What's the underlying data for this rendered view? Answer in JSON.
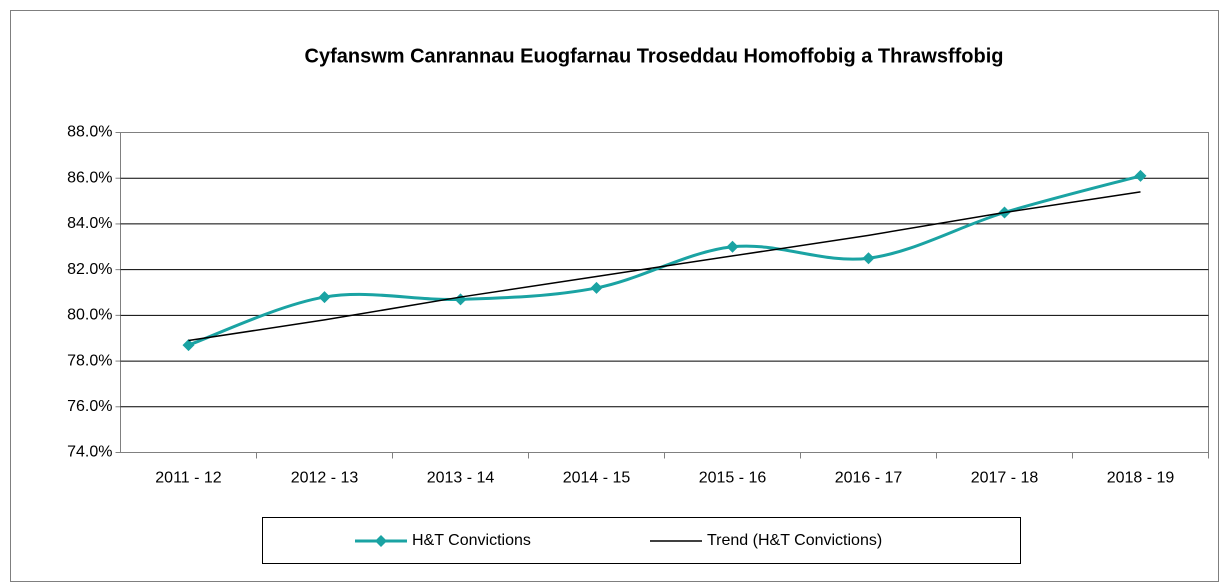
{
  "chart_data": {
    "type": "line",
    "title": "Cyfanswm Canrannau Euogfarnau Troseddau Homoffobig a Thrawsffobig",
    "categories": [
      "2011 - 12",
      "2012 - 13",
      "2013 - 14",
      "2014 - 15",
      "2015 - 16",
      "2016 - 17",
      "2017 - 18",
      "2018 - 19"
    ],
    "series": [
      {
        "name": "H&T Convictions",
        "color": "#1aa3a3",
        "smooth": true,
        "marker": "diamond",
        "values": [
          78.7,
          80.8,
          80.7,
          81.2,
          83.0,
          82.5,
          84.5,
          86.1
        ]
      },
      {
        "name": "Trend (H&T Convictions)",
        "color": "#000000",
        "values": [
          78.9,
          79.8,
          80.8,
          81.7,
          82.6,
          83.5,
          84.5,
          85.4
        ]
      }
    ],
    "ylim": [
      74,
      88
    ],
    "yticks": [
      {
        "value": 74,
        "label": "74.0%"
      },
      {
        "value": 76,
        "label": "76.0%"
      },
      {
        "value": 78,
        "label": "78.0%"
      },
      {
        "value": 80,
        "label": "80.0%"
      },
      {
        "value": 82,
        "label": "82.0%"
      },
      {
        "value": 84,
        "label": "84.0%"
      },
      {
        "value": 86,
        "label": "86.0%"
      },
      {
        "value": 88,
        "label": "88.0%"
      }
    ],
    "grid": true,
    "legend": "bottom"
  }
}
